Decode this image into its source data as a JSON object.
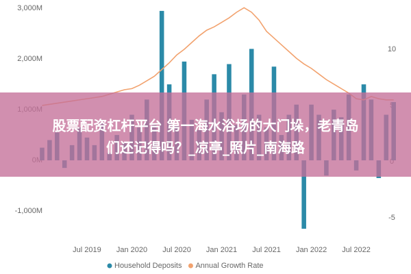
{
  "chart_data": {
    "type": "bar",
    "categories": [
      null,
      null,
      null,
      null,
      null,
      null,
      "Jul 2019",
      null,
      null,
      null,
      null,
      null,
      "Jan 2020",
      null,
      null,
      null,
      null,
      null,
      "Jul 2020",
      null,
      null,
      null,
      null,
      null,
      "Jan 2021",
      null,
      null,
      null,
      null,
      null,
      "Jul 2021",
      null,
      null,
      null,
      null,
      null,
      "Jan 2022",
      null,
      null,
      null,
      null,
      null,
      "Jul 2022",
      null,
      null,
      null,
      null,
      null
    ],
    "series": [
      {
        "name": "Household Deposits",
        "type": "bar",
        "color": "#2b8aa8",
        "values": [
          250,
          400,
          550,
          -150,
          300,
          650,
          450,
          300,
          750,
          150,
          500,
          350,
          900,
          650,
          1200,
          700,
          2950,
          1500,
          700,
          1950,
          800,
          600,
          1200,
          1700,
          950,
          1900,
          700,
          1300,
          2200,
          900,
          650,
          1850,
          500,
          900,
          1100,
          -1350,
          1100,
          900,
          -300,
          1000,
          850,
          1300,
          -200,
          1500,
          1200,
          -350,
          900,
          1150
        ]
      },
      {
        "name": "Annual Growth Rate",
        "type": "line",
        "axis": "y2",
        "color": "#f2a26e",
        "values": [
          5.0,
          5.1,
          5.2,
          5.3,
          5.4,
          5.5,
          5.6,
          5.7,
          5.8,
          6.0,
          6.2,
          6.4,
          6.5,
          6.8,
          7.2,
          7.6,
          8.2,
          8.8,
          9.5,
          10.0,
          10.6,
          11.2,
          11.7,
          12.0,
          12.4,
          12.8,
          13.3,
          13.7,
          13.3,
          12.6,
          11.6,
          11.0,
          10.4,
          9.8,
          9.2,
          8.7,
          8.3,
          7.8,
          7.3,
          6.9,
          6.5,
          6.1,
          5.6,
          5.5,
          5.8,
          5.6,
          5.5,
          5.5
        ]
      }
    ],
    "ylim": [
      -1500,
      3030
    ],
    "yticks": [
      {
        "value": -1000,
        "label": "-1,000M"
      },
      {
        "value": 0,
        "label": "0M"
      },
      {
        "value": 1000,
        "label": "1,000M"
      },
      {
        "value": 2000,
        "label": "2,000M"
      },
      {
        "value": 3000,
        "label": "3,000M"
      }
    ],
    "y2lim": [
      -6.65,
      13.78
    ],
    "y2ticks": [
      -5,
      0,
      5,
      10
    ],
    "legend": "bottom"
  },
  "banner": {
    "lines": [
      "股票配资杠杆平台 第一海水浴场的大门垛，老青岛",
      "们还记得吗？_凉亭_照片_南海路"
    ]
  }
}
